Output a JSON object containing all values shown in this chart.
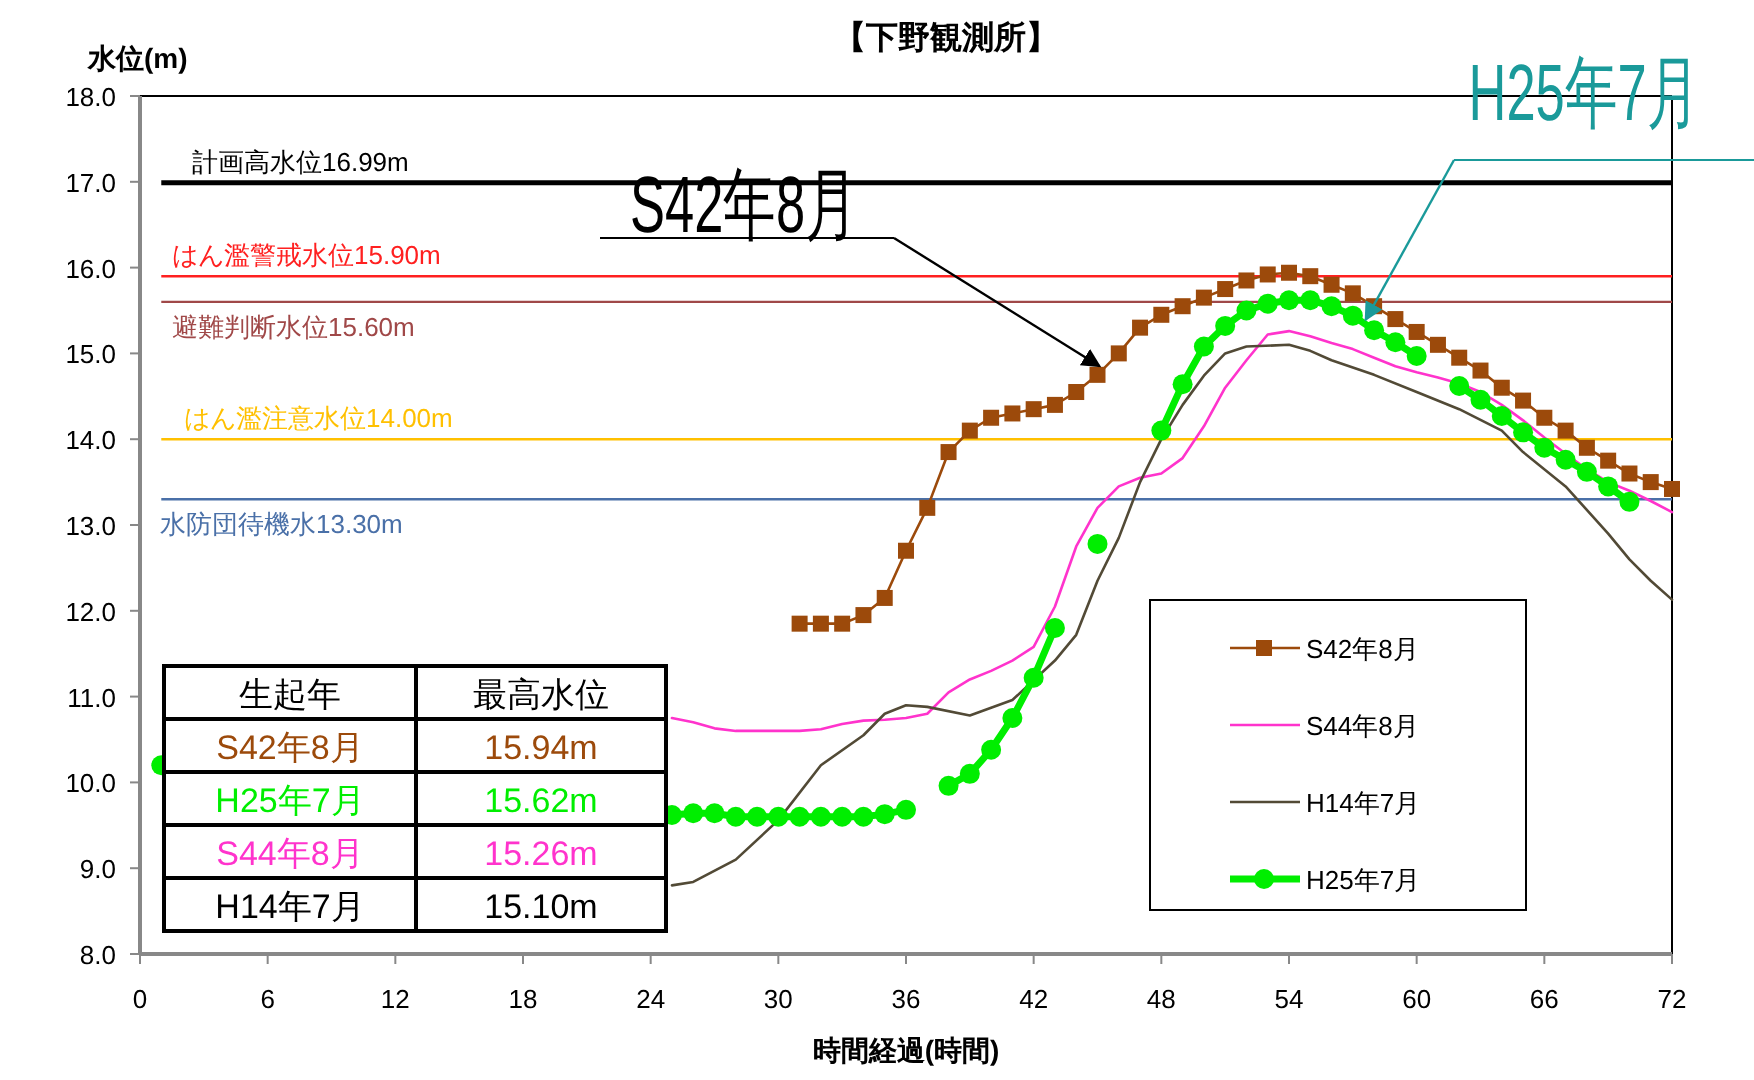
{
  "chart_data": {
    "type": "line",
    "title": "【下野観測所】",
    "xlabel": "時間経過(時間)",
    "ylabel": "水位(m)",
    "xlim": [
      0,
      72
    ],
    "xticks": [
      0,
      6,
      12,
      18,
      24,
      30,
      36,
      42,
      48,
      54,
      60,
      66,
      72
    ],
    "ylim": [
      8,
      18
    ],
    "yticks": [
      {
        "value": 8,
        "label": "8.0"
      },
      {
        "value": 9,
        "label": "9.0"
      },
      {
        "value": 10,
        "label": "10.0"
      },
      {
        "value": 11,
        "label": "11.0"
      },
      {
        "value": 12,
        "label": "12.0"
      },
      {
        "value": 13,
        "label": "13.0"
      },
      {
        "value": 14,
        "label": "14.0"
      },
      {
        "value": 15,
        "label": "15.0"
      },
      {
        "value": 16,
        "label": "16.0"
      },
      {
        "value": 17,
        "label": "17.0"
      },
      {
        "value": 18,
        "label": "18.0"
      }
    ],
    "grid": false,
    "legend": "bottom right",
    "series": [
      {
        "name": "S42年8月",
        "color": "#9c4a0b",
        "marker": "square",
        "x": [
          31,
          32,
          33,
          34,
          35,
          36,
          37,
          38,
          39,
          40,
          41,
          42,
          43,
          44,
          45,
          46,
          47,
          48,
          49,
          50,
          51,
          52,
          53,
          54,
          55,
          56,
          57,
          58,
          59,
          60,
          61,
          62,
          63,
          64,
          65,
          66,
          67,
          68,
          69,
          70,
          71,
          72
        ],
        "values": [
          11.85,
          11.85,
          11.85,
          11.95,
          12.15,
          12.7,
          13.2,
          13.85,
          14.1,
          14.25,
          14.3,
          14.35,
          14.4,
          14.55,
          14.75,
          15.0,
          15.3,
          15.45,
          15.55,
          15.65,
          15.75,
          15.85,
          15.92,
          15.94,
          15.9,
          15.8,
          15.7,
          15.55,
          15.4,
          15.25,
          15.1,
          14.95,
          14.8,
          14.6,
          14.45,
          14.25,
          14.1,
          13.9,
          13.75,
          13.6,
          13.5,
          13.42
        ]
      },
      {
        "name": "S44年8月",
        "color": "#ff33cc",
        "marker": "none",
        "x": [
          25,
          26,
          27,
          28,
          29,
          30,
          31,
          32,
          33,
          34,
          35,
          36,
          37,
          38,
          39,
          40,
          41,
          42,
          43,
          44,
          45,
          46,
          47,
          48,
          49,
          50,
          51,
          52,
          53,
          54,
          55,
          56,
          57,
          58,
          59,
          60,
          61,
          62,
          63,
          64,
          65,
          66,
          67,
          68,
          69,
          70,
          71,
          72
        ],
        "values": [
          10.75,
          10.7,
          10.63,
          10.6,
          10.6,
          10.6,
          10.6,
          10.62,
          10.68,
          10.72,
          10.73,
          10.75,
          10.8,
          11.05,
          11.2,
          11.3,
          11.42,
          11.58,
          12.05,
          12.75,
          13.2,
          13.45,
          13.55,
          13.6,
          13.78,
          14.15,
          14.6,
          14.92,
          15.22,
          15.26,
          15.2,
          15.12,
          15.05,
          14.95,
          14.85,
          14.78,
          14.72,
          14.65,
          14.55,
          14.4,
          14.22,
          14.02,
          13.83,
          13.65,
          13.5,
          13.4,
          13.28,
          13.15
        ]
      },
      {
        "name": "H14年7月",
        "color": "#524a36",
        "marker": "none",
        "x": [
          25,
          26,
          28,
          30,
          32,
          34,
          35,
          36,
          37,
          39,
          41,
          43,
          44,
          45,
          46,
          47,
          48,
          49,
          50,
          51,
          52,
          54,
          55,
          56,
          58,
          60,
          62,
          64,
          65,
          67,
          69,
          70,
          71,
          72
        ],
        "values": [
          8.8,
          8.84,
          9.1,
          9.56,
          10.2,
          10.55,
          10.8,
          10.9,
          10.88,
          10.78,
          10.96,
          11.42,
          11.72,
          12.35,
          12.85,
          13.5,
          14.0,
          14.4,
          14.74,
          15.0,
          15.08,
          15.1,
          15.03,
          14.92,
          14.75,
          14.55,
          14.35,
          14.1,
          13.85,
          13.45,
          12.9,
          12.6,
          12.35,
          12.13
        ]
      },
      {
        "name": "H25年7月",
        "color": "#00ee00",
        "marker": "circle",
        "x": [
          1,
          2,
          25,
          26,
          27,
          28,
          29,
          30,
          31,
          32,
          33,
          34,
          35,
          36,
          37,
          38,
          39,
          40,
          41,
          42,
          43,
          44,
          45,
          46,
          48,
          49,
          50,
          51,
          52,
          53,
          54,
          55,
          56,
          57,
          58,
          59,
          60,
          61,
          62,
          63,
          64,
          65,
          66,
          67,
          68,
          69,
          70
        ],
        "values": [
          10.2,
          null,
          9.62,
          9.64,
          9.64,
          9.6,
          9.6,
          9.6,
          9.6,
          9.6,
          9.6,
          9.6,
          9.63,
          9.68,
          null,
          9.96,
          10.1,
          10.38,
          10.75,
          11.22,
          11.8,
          null,
          12.78,
          null,
          14.1,
          14.64,
          15.08,
          15.32,
          15.5,
          15.58,
          15.62,
          15.62,
          15.55,
          15.44,
          15.27,
          15.13,
          14.97,
          null,
          14.62,
          14.46,
          14.27,
          14.08,
          13.9,
          13.76,
          13.62,
          13.45,
          13.27
        ]
      }
    ],
    "ref_lines": [
      {
        "axis": "y",
        "value": 16.99,
        "label": "計画高水位16.99m",
        "color": "#000000"
      },
      {
        "axis": "y",
        "value": 15.9,
        "label": "はん濫警戒水位15.90m",
        "color": "#ff2020"
      },
      {
        "axis": "y",
        "value": 15.6,
        "label": "避難判断水位15.60m",
        "color": "#a04848"
      },
      {
        "axis": "y",
        "value": 14.0,
        "label": "はん濫注意水位14.00m",
        "color": "#ffc000"
      },
      {
        "axis": "y",
        "value": 13.3,
        "label": "水防団待機水13.30m",
        "color": "#4a70a8"
      }
    ],
    "annotations": [
      {
        "text": "S42年8月",
        "x": 45.1,
        "y": 14.85
      },
      {
        "text": "H25年7月",
        "x": 57.6,
        "y": 15.39
      },
      "生起年",
      "最高水位",
      "S42年8月",
      "15.94m",
      "H25年7月",
      "15.62m",
      "S44年8月",
      "15.26m",
      "H14年7月",
      "15.10m"
    ]
  }
}
